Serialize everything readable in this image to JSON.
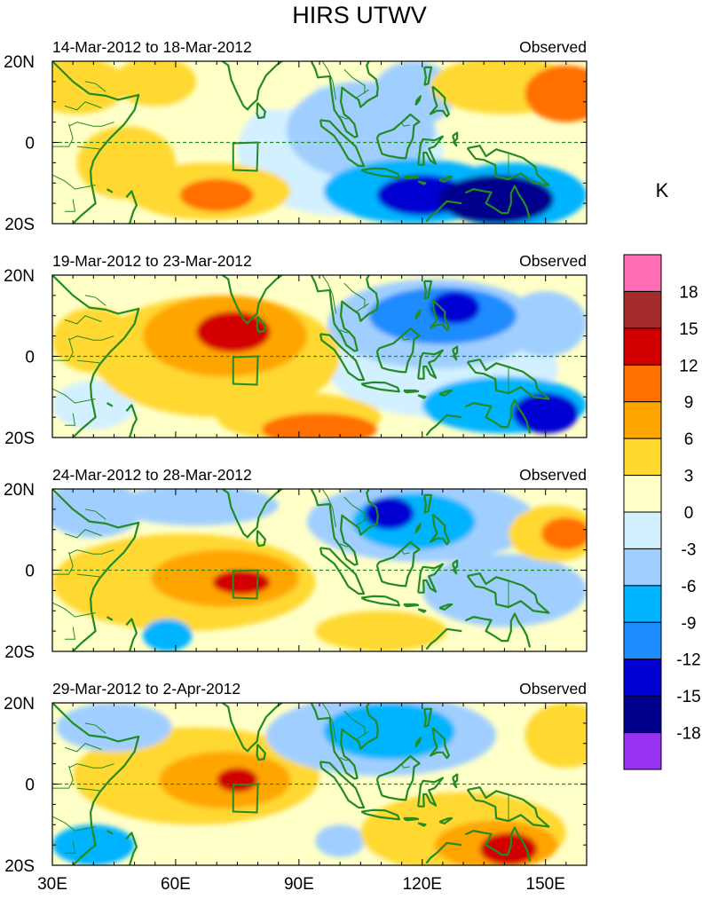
{
  "figure": {
    "title": "HIRS UTWV",
    "unit_label": "K"
  },
  "panels": [
    {
      "period": "14-Mar-2012 to 18-Mar-2012",
      "tag": "Observed"
    },
    {
      "period": "19-Mar-2012 to 23-Mar-2012",
      "tag": "Observed"
    },
    {
      "period": "24-Mar-2012 to 28-Mar-2012",
      "tag": "Observed"
    },
    {
      "period": "29-Mar-2012 to 2-Apr-2012",
      "tag": "Observed"
    }
  ],
  "axes": {
    "lat_range": [
      -20,
      20
    ],
    "lon_range": [
      30,
      160
    ],
    "lat_ticks": [
      "20N",
      "0",
      "20S"
    ],
    "lon_ticks": [
      {
        "lon": 30,
        "label": "30E"
      },
      {
        "lon": 60,
        "label": "60E"
      },
      {
        "lon": 90,
        "label": "90E"
      },
      {
        "lon": 120,
        "label": "120E"
      },
      {
        "lon": 150,
        "label": "150E"
      }
    ]
  },
  "colorbar": {
    "labels": [
      "18",
      "15",
      "12",
      "9",
      "6",
      "3",
      "0",
      "-3",
      "-6",
      "-9",
      "-12",
      "-15",
      "-18"
    ],
    "colors": [
      "#ff6eb4",
      "#a52a2a",
      "#d20000",
      "#ff7000",
      "#ffa500",
      "#ffd830",
      "#ffffc8",
      "#d2f0ff",
      "#a0cfff",
      "#00b4ff",
      "#1e8cff",
      "#0000d2",
      "#00008c",
      "#9632f0"
    ]
  },
  "box_region": {
    "lon": [
      74,
      80
    ],
    "lat": [
      -7,
      0
    ]
  },
  "land_color": "#228b22",
  "anomaly_blobs": [
    [
      {
        "lon": 138,
        "lat": -14,
        "rx": 14,
        "ry": 6,
        "v": -15
      },
      {
        "lon": 120,
        "lat": -13,
        "rx": 11,
        "ry": 5,
        "v": -14
      },
      {
        "lon": 118,
        "lat": -12,
        "rx": 22,
        "ry": 8,
        "v": -8
      },
      {
        "lon": 142,
        "lat": -13,
        "rx": 18,
        "ry": 8,
        "v": -8
      },
      {
        "lon": 105,
        "lat": 3,
        "rx": 18,
        "ry": 12,
        "v": -5
      },
      {
        "lon": 100,
        "lat": -2,
        "rx": 25,
        "ry": 16,
        "v": -2
      },
      {
        "lon": 118,
        "lat": 12,
        "rx": 10,
        "ry": 8,
        "v": -4
      },
      {
        "lon": 155,
        "lat": 12,
        "rx": 10,
        "ry": 7,
        "v": 11
      },
      {
        "lon": 140,
        "lat": 14,
        "rx": 18,
        "ry": 7,
        "v": 6
      },
      {
        "lon": 70,
        "lat": -13,
        "rx": 9,
        "ry": 4,
        "v": 10
      },
      {
        "lon": 68,
        "lat": -12,
        "rx": 20,
        "ry": 7,
        "v": 5
      },
      {
        "lon": 48,
        "lat": -5,
        "rx": 12,
        "ry": 9,
        "v": 5
      },
      {
        "lon": 36,
        "lat": 14,
        "rx": 12,
        "ry": 7,
        "v": 4
      },
      {
        "lon": 55,
        "lat": 15,
        "rx": 10,
        "ry": 6,
        "v": 4
      },
      {
        "lon": 85,
        "lat": 14,
        "rx": 9,
        "ry": 6,
        "v": 3
      }
    ],
    [
      {
        "lon": 74,
        "lat": 6,
        "rx": 9,
        "ry": 5,
        "v": 13
      },
      {
        "lon": 72,
        "lat": 5,
        "rx": 20,
        "ry": 10,
        "v": 7
      },
      {
        "lon": 70,
        "lat": 0,
        "rx": 30,
        "ry": 15,
        "v": 4
      },
      {
        "lon": 95,
        "lat": -18,
        "rx": 14,
        "ry": 4,
        "v": 11
      },
      {
        "lon": 90,
        "lat": -15,
        "rx": 20,
        "ry": 6,
        "v": 5
      },
      {
        "lon": 40,
        "lat": 4,
        "rx": 10,
        "ry": 8,
        "v": 4
      },
      {
        "lon": 128,
        "lat": 12,
        "rx": 6,
        "ry": 4,
        "v": -14
      },
      {
        "lon": 125,
        "lat": 10,
        "rx": 18,
        "ry": 7,
        "v": -9
      },
      {
        "lon": 123,
        "lat": 8,
        "rx": 26,
        "ry": 11,
        "v": -5
      },
      {
        "lon": 150,
        "lat": -14,
        "rx": 8,
        "ry": 5,
        "v": -12
      },
      {
        "lon": 140,
        "lat": -12,
        "rx": 20,
        "ry": 7,
        "v": -7
      },
      {
        "lon": 125,
        "lat": -3,
        "rx": 28,
        "ry": 12,
        "v": -2
      },
      {
        "lon": 150,
        "lat": 8,
        "rx": 10,
        "ry": 8,
        "v": -3
      },
      {
        "lon": 40,
        "lat": -12,
        "rx": 10,
        "ry": 6,
        "v": -2
      }
    ],
    [
      {
        "lon": 76,
        "lat": -3,
        "rx": 7,
        "ry": 3,
        "v": 13
      },
      {
        "lon": 72,
        "lat": -2,
        "rx": 18,
        "ry": 7,
        "v": 8
      },
      {
        "lon": 62,
        "lat": -3,
        "rx": 32,
        "ry": 12,
        "v": 4
      },
      {
        "lon": 155,
        "lat": 9,
        "rx": 6,
        "ry": 4,
        "v": 11
      },
      {
        "lon": 152,
        "lat": 9,
        "rx": 11,
        "ry": 7,
        "v": 5
      },
      {
        "lon": 110,
        "lat": -15,
        "rx": 16,
        "ry": 5,
        "v": 4
      },
      {
        "lon": 112,
        "lat": 14,
        "rx": 6,
        "ry": 4,
        "v": -14
      },
      {
        "lon": 118,
        "lat": 12,
        "rx": 15,
        "ry": 7,
        "v": -8
      },
      {
        "lon": 120,
        "lat": 12,
        "rx": 28,
        "ry": 10,
        "v": -4
      },
      {
        "lon": 40,
        "lat": 15,
        "rx": 12,
        "ry": 7,
        "v": -5
      },
      {
        "lon": 65,
        "lat": 16,
        "rx": 20,
        "ry": 5,
        "v": -3
      },
      {
        "lon": 140,
        "lat": -5,
        "rx": 20,
        "ry": 9,
        "v": -3
      },
      {
        "lon": 58,
        "lat": -16,
        "rx": 6,
        "ry": 4,
        "v": -7
      }
    ],
    [
      {
        "lon": 141,
        "lat": -16,
        "rx": 7,
        "ry": 4,
        "v": 14
      },
      {
        "lon": 138,
        "lat": -15,
        "rx": 15,
        "ry": 6,
        "v": 8
      },
      {
        "lon": 130,
        "lat": -12,
        "rx": 25,
        "ry": 10,
        "v": 4
      },
      {
        "lon": 75,
        "lat": 1,
        "rx": 5,
        "ry": 3,
        "v": 13
      },
      {
        "lon": 72,
        "lat": 1,
        "rx": 16,
        "ry": 7,
        "v": 7
      },
      {
        "lon": 65,
        "lat": 2,
        "rx": 30,
        "ry": 12,
        "v": 4
      },
      {
        "lon": 155,
        "lat": 12,
        "rx": 10,
        "ry": 8,
        "v": 4
      },
      {
        "lon": 112,
        "lat": 13,
        "rx": 16,
        "ry": 7,
        "v": -8
      },
      {
        "lon": 110,
        "lat": 12,
        "rx": 28,
        "ry": 10,
        "v": -4
      },
      {
        "lon": 45,
        "lat": 14,
        "rx": 14,
        "ry": 6,
        "v": -5
      },
      {
        "lon": 40,
        "lat": -15,
        "rx": 10,
        "ry": 5,
        "v": -7
      },
      {
        "lon": 100,
        "lat": -14,
        "rx": 6,
        "ry": 4,
        "v": -3
      }
    ]
  ]
}
